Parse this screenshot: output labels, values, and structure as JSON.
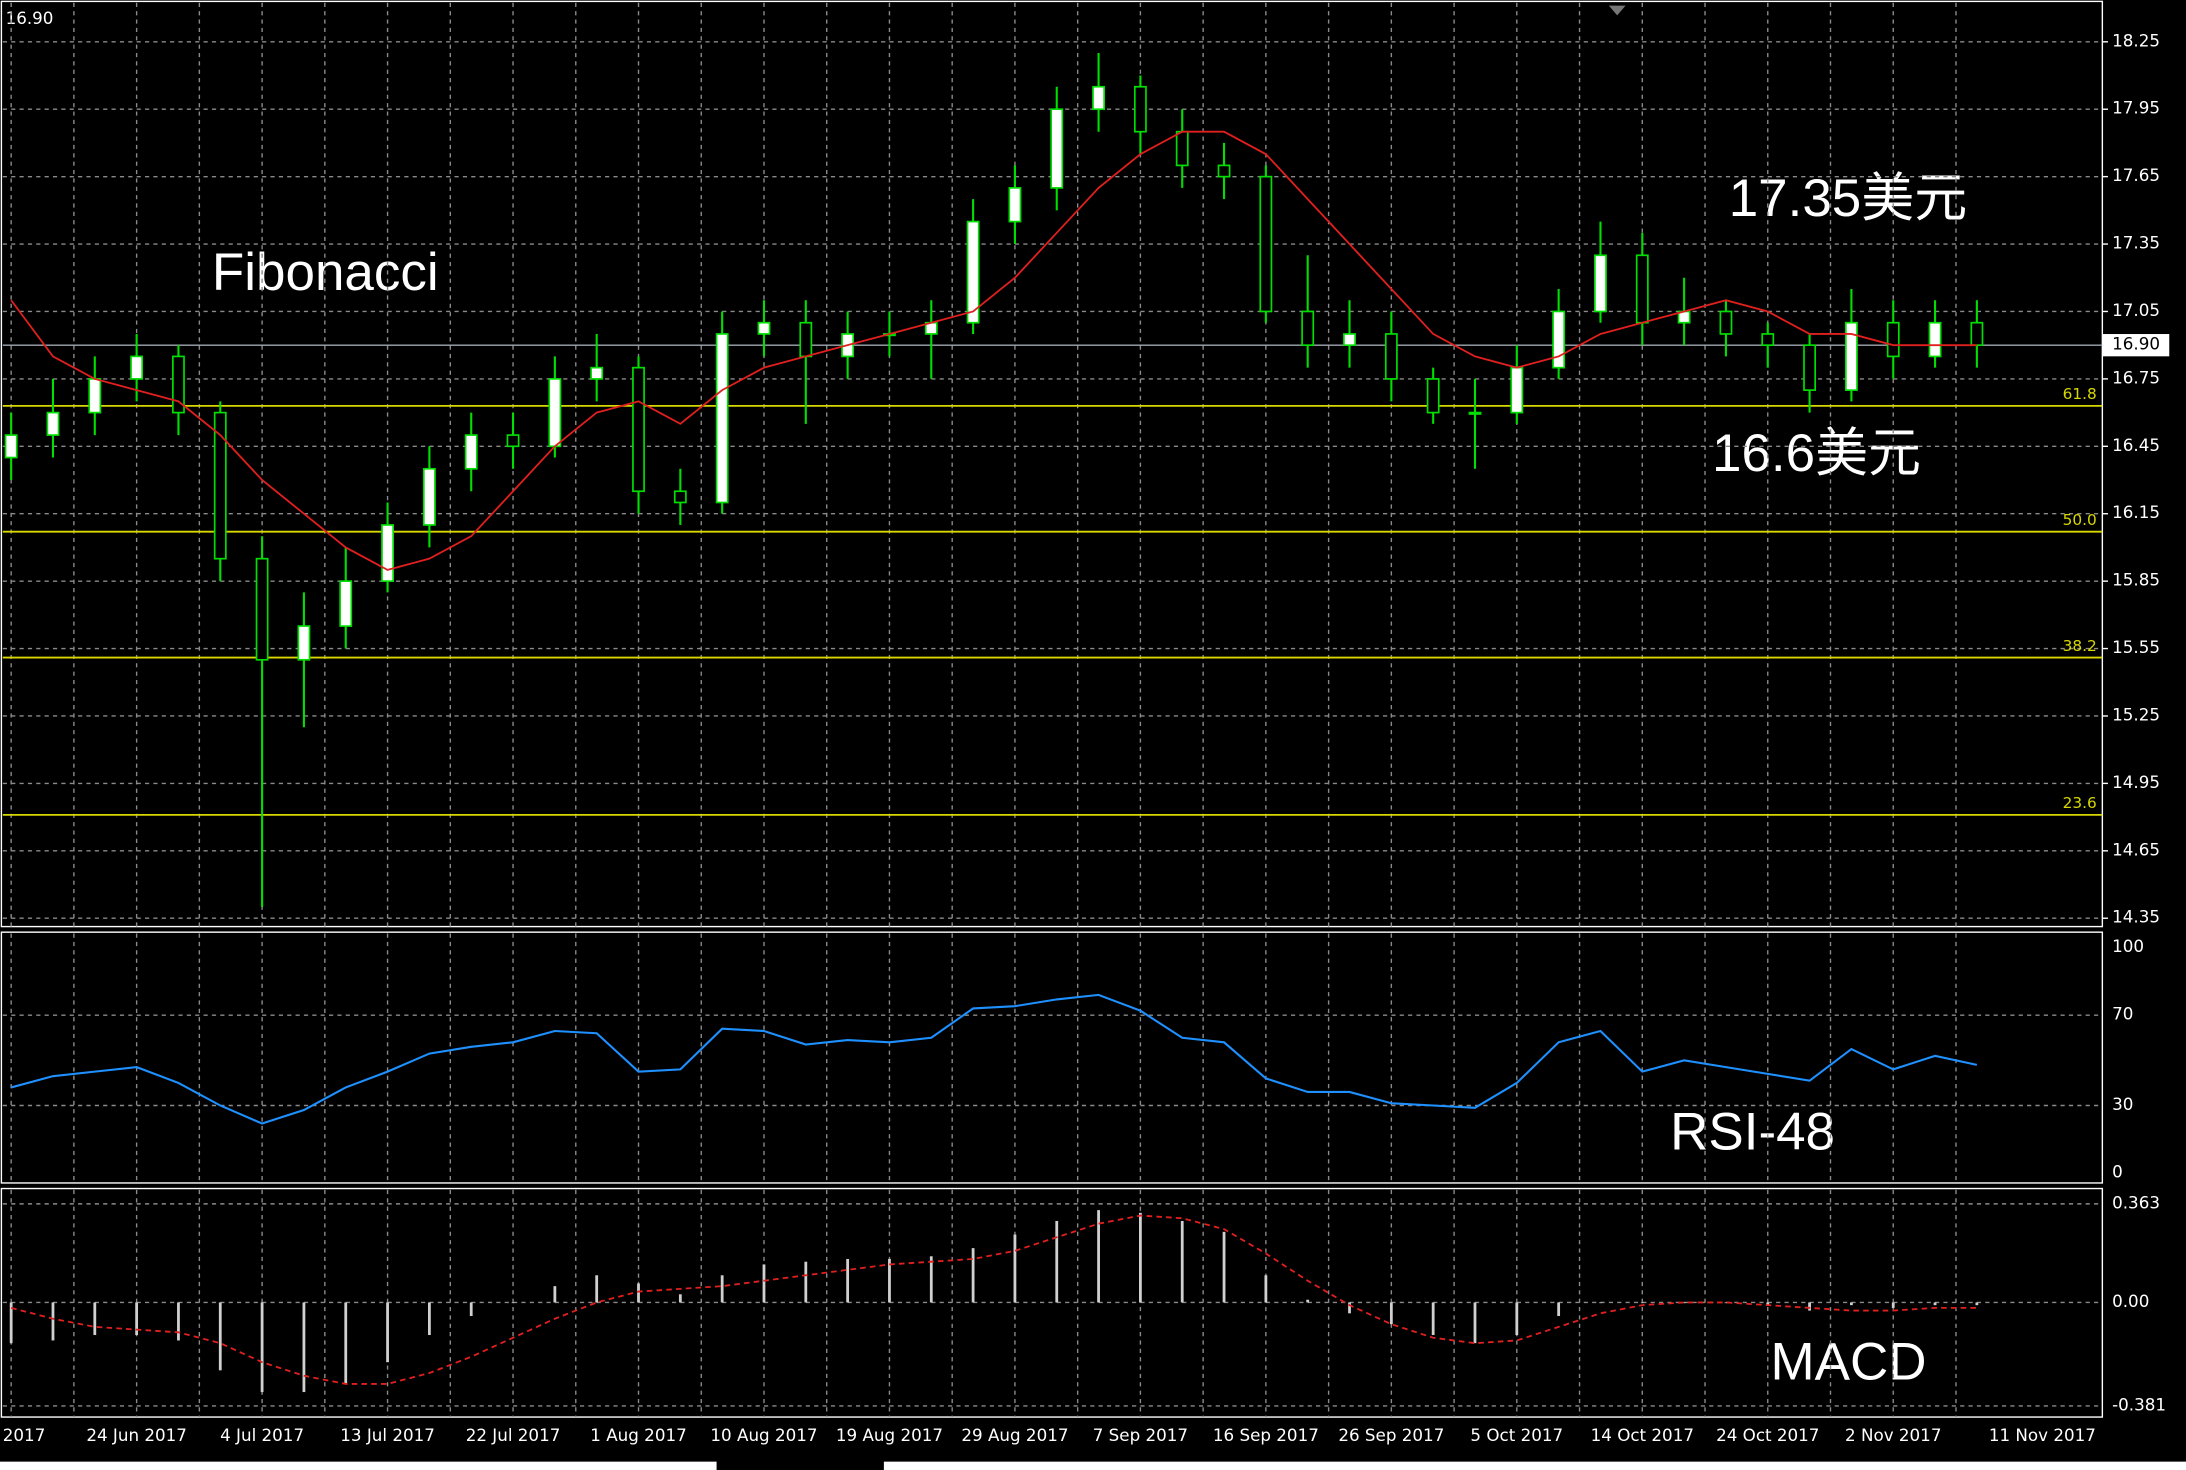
{
  "chart_data": {
    "type": "candlestick",
    "current_price": {
      "value": 16.9,
      "label": "16.90"
    },
    "categories": [
      "2017",
      null,
      null,
      "24 Jun 2017",
      null,
      null,
      "4 Jul 2017",
      null,
      null,
      "13 Jul 2017",
      null,
      null,
      "22 Jul 2017",
      null,
      null,
      "1 Aug 2017",
      null,
      null,
      "10 Aug 2017",
      null,
      null,
      "19 Aug 2017",
      null,
      null,
      "29 Aug 2017",
      null,
      null,
      "7 Sep 2017",
      null,
      null,
      "16 Sep 2017",
      null,
      null,
      "26 Sep 2017",
      null,
      null,
      "5 Oct 2017",
      null,
      null,
      "14 Oct 2017",
      null,
      null,
      "24 Oct 2017",
      null,
      null,
      "2 Nov 2017",
      null,
      null
    ],
    "x_end_label": "11 Nov 2017",
    "open": [
      16.4,
      16.5,
      16.6,
      16.75,
      16.85,
      16.6,
      15.95,
      15.5,
      15.65,
      15.85,
      16.1,
      16.35,
      16.5,
      16.45,
      16.75,
      16.8,
      16.25,
      16.2,
      16.95,
      17.0,
      16.85,
      16.95,
      16.95,
      17.0,
      17.45,
      17.6,
      17.95,
      18.05,
      17.85,
      17.7,
      17.65,
      17.05,
      16.9,
      16.95,
      16.75,
      16.6,
      16.6,
      16.8,
      17.05,
      17.3,
      17.0,
      17.05,
      16.95,
      16.9,
      16.7,
      17.0,
      16.85,
      17.0
    ],
    "high": [
      16.6,
      16.75,
      16.85,
      16.95,
      16.9,
      16.65,
      16.05,
      15.8,
      16.0,
      16.2,
      16.45,
      16.6,
      16.6,
      16.85,
      16.95,
      16.85,
      16.35,
      17.05,
      17.1,
      17.1,
      17.05,
      17.05,
      17.1,
      17.55,
      17.7,
      18.05,
      18.2,
      18.1,
      17.95,
      17.8,
      17.7,
      17.3,
      17.1,
      17.05,
      16.8,
      16.75,
      16.9,
      17.15,
      17.45,
      17.4,
      17.2,
      17.1,
      17.0,
      16.95,
      17.15,
      17.1,
      17.1,
      17.1
    ],
    "low": [
      16.3,
      16.4,
      16.5,
      16.65,
      16.5,
      15.85,
      14.4,
      15.2,
      15.55,
      15.8,
      16.0,
      16.25,
      16.35,
      16.4,
      16.65,
      16.15,
      16.1,
      16.15,
      16.85,
      16.55,
      16.75,
      16.85,
      16.75,
      16.95,
      17.35,
      17.5,
      17.85,
      17.75,
      17.6,
      17.55,
      17.0,
      16.8,
      16.8,
      16.65,
      16.55,
      16.35,
      16.55,
      16.75,
      17.0,
      16.9,
      16.9,
      16.85,
      16.8,
      16.6,
      16.65,
      16.75,
      16.8,
      16.8
    ],
    "close": [
      16.5,
      16.6,
      16.75,
      16.85,
      16.6,
      15.95,
      15.5,
      15.65,
      15.85,
      16.1,
      16.35,
      16.5,
      16.45,
      16.75,
      16.8,
      16.25,
      16.2,
      16.95,
      17.0,
      16.85,
      16.95,
      16.95,
      17.0,
      17.45,
      17.6,
      17.95,
      18.05,
      17.85,
      17.7,
      17.65,
      17.05,
      16.9,
      16.95,
      16.75,
      16.6,
      16.6,
      16.8,
      17.05,
      17.3,
      17.0,
      17.05,
      16.95,
      16.9,
      16.7,
      17.0,
      16.85,
      17.0,
      16.9
    ],
    "ma": {
      "color": "#e0201e",
      "values": [
        17.1,
        16.85,
        16.75,
        16.7,
        16.65,
        16.5,
        16.3,
        16.15,
        16.0,
        15.9,
        15.95,
        16.05,
        16.25,
        16.45,
        16.6,
        16.65,
        16.55,
        16.7,
        16.8,
        16.85,
        16.9,
        16.95,
        17.0,
        17.05,
        17.2,
        17.4,
        17.6,
        17.75,
        17.85,
        17.85,
        17.75,
        17.55,
        17.35,
        17.15,
        16.95,
        16.85,
        16.8,
        16.85,
        16.95,
        17.0,
        17.05,
        17.1,
        17.05,
        16.95,
        16.95,
        16.9,
        16.9,
        16.9
      ]
    },
    "ylim": [
      14.35,
      18.25
    ],
    "yticks": [
      18.25,
      17.95,
      17.65,
      17.35,
      17.05,
      16.75,
      16.45,
      16.15,
      15.85,
      15.55,
      15.25,
      14.95,
      14.65,
      14.35
    ],
    "fibonacci": [
      {
        "price": 16.63,
        "label": "61.8"
      },
      {
        "price": 16.07,
        "label": "50.0"
      },
      {
        "price": 15.51,
        "label": "38.2"
      },
      {
        "price": 14.81,
        "label": "23.6"
      }
    ],
    "annotations": [
      "Fibonacci",
      "17.35美元",
      "16.6美元",
      "RSI-48",
      "MACD"
    ],
    "rsi": {
      "color": "#1e90ff",
      "ylim": [
        0,
        100
      ],
      "yticks": [
        100,
        70,
        30,
        0
      ],
      "values": [
        38,
        43,
        45,
        47,
        40,
        30,
        22,
        28,
        38,
        45,
        53,
        56,
        58,
        63,
        62,
        45,
        46,
        64,
        63,
        57,
        59,
        58,
        60,
        73,
        74,
        77,
        79,
        72,
        60,
        58,
        42,
        36,
        36,
        31,
        30,
        29,
        40,
        58,
        63,
        45,
        50,
        47,
        44,
        41,
        55,
        46,
        52,
        48
      ]
    },
    "macd": {
      "ylim": [
        -0.381,
        0.363
      ],
      "yticks": [
        0.363,
        {
          "value": 0,
          "label": "0.00"
        },
        -0.381
      ],
      "signal_color": "#e0201e",
      "histogram": [
        -0.15,
        -0.14,
        -0.12,
        -0.12,
        -0.14,
        -0.25,
        -0.33,
        -0.33,
        -0.3,
        -0.22,
        -0.12,
        -0.05,
        0.0,
        0.06,
        0.1,
        0.07,
        0.03,
        0.1,
        0.14,
        0.15,
        0.16,
        0.16,
        0.17,
        0.2,
        0.25,
        0.3,
        0.34,
        0.33,
        0.3,
        0.26,
        0.1,
        0.01,
        -0.04,
        -0.08,
        -0.12,
        -0.15,
        -0.12,
        -0.05,
        0.0,
        0.0,
        0.0,
        0.0,
        -0.01,
        -0.03,
        -0.01,
        -0.02,
        -0.01,
        -0.01
      ],
      "signal": [
        -0.02,
        -0.06,
        -0.09,
        -0.1,
        -0.11,
        -0.15,
        -0.22,
        -0.27,
        -0.3,
        -0.3,
        -0.26,
        -0.2,
        -0.13,
        -0.06,
        0.0,
        0.04,
        0.05,
        0.06,
        0.08,
        0.1,
        0.12,
        0.14,
        0.15,
        0.16,
        0.19,
        0.24,
        0.29,
        0.32,
        0.31,
        0.27,
        0.18,
        0.08,
        -0.01,
        -0.08,
        -0.13,
        -0.15,
        -0.14,
        -0.09,
        -0.04,
        -0.01,
        0.0,
        0.0,
        -0.01,
        -0.02,
        -0.03,
        -0.03,
        -0.02,
        -0.02
      ]
    },
    "grid": true
  }
}
